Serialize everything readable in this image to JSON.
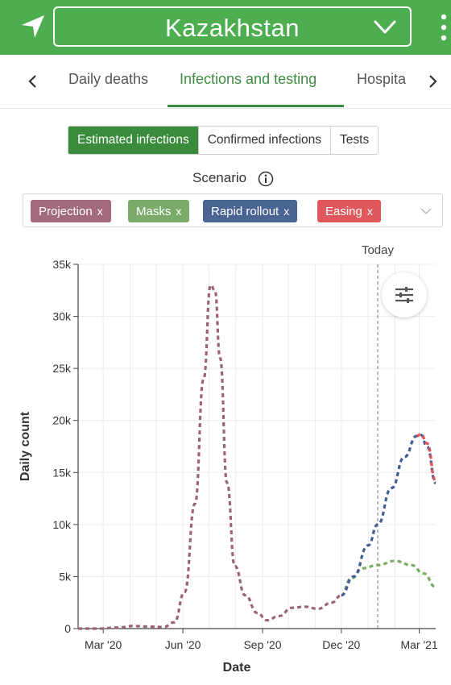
{
  "header": {
    "country": "Kazakhstan",
    "nav_icon": "location-arrow-icon",
    "dropdown_icon": "chevron-down-icon",
    "menu_icon": "kebab-menu-icon",
    "color": "#4cae4f"
  },
  "tabs": {
    "items": [
      {
        "label": "Daily deaths",
        "active": false
      },
      {
        "label": "Infections and testing",
        "active": true
      },
      {
        "label": "Hospita",
        "active": false
      }
    ],
    "active_color": "#3c8c40"
  },
  "segmented": {
    "options": [
      {
        "label": "Estimated infections",
        "active": true
      },
      {
        "label": "Confirmed infections",
        "active": false
      },
      {
        "label": "Tests",
        "active": false
      }
    ]
  },
  "scenario": {
    "label": "Scenario",
    "chips": [
      {
        "label": "Projection",
        "color": "#a36a7c"
      },
      {
        "label": "Masks",
        "color": "#7aab6a"
      },
      {
        "label": "Rapid rollout",
        "color": "#4a6494"
      },
      {
        "label": "Easing",
        "color": "#e0585c"
      }
    ],
    "remove_glyph": "x"
  },
  "chart_data": {
    "type": "line",
    "xlabel": "Date",
    "ylabel": "Daily count",
    "ylim": [
      0,
      35000
    ],
    "y_ticks": [
      0,
      5000,
      10000,
      15000,
      20000,
      25000,
      30000,
      35000
    ],
    "y_tick_labels": [
      "0",
      "5k",
      "10k",
      "15k",
      "20k",
      "25k",
      "30k",
      "35k"
    ],
    "x_range": [
      "2020-02-01",
      "2021-03-20"
    ],
    "x_ticks": [
      "2020-03-01",
      "2020-06-01",
      "2020-09-01",
      "2020-12-01",
      "2021-03-01"
    ],
    "x_tick_labels": [
      "Mar '20",
      "Jun '20",
      "Sep '20",
      "Dec '20",
      "Mar '21"
    ],
    "today": {
      "label": "Today",
      "date": "2021-01-12"
    },
    "grid": true,
    "series": [
      {
        "name": "Projection",
        "color": "#9c6279",
        "points": [
          [
            "2020-02-01",
            0
          ],
          [
            "2020-02-25",
            0
          ],
          [
            "2020-03-18",
            100
          ],
          [
            "2020-04-05",
            250
          ],
          [
            "2020-04-20",
            200
          ],
          [
            "2020-05-10",
            150
          ],
          [
            "2020-05-22",
            600
          ],
          [
            "2020-06-03",
            3500
          ],
          [
            "2020-06-15",
            12000
          ],
          [
            "2020-06-25",
            24000
          ],
          [
            "2020-07-03",
            33000
          ],
          [
            "2020-07-08",
            32500
          ],
          [
            "2020-07-14",
            26000
          ],
          [
            "2020-07-22",
            14000
          ],
          [
            "2020-07-31",
            6000
          ],
          [
            "2020-08-12",
            3200
          ],
          [
            "2020-08-26",
            1500
          ],
          [
            "2020-09-06",
            800
          ],
          [
            "2020-09-20",
            1200
          ],
          [
            "2020-10-05",
            2000
          ],
          [
            "2020-10-20",
            2100
          ],
          [
            "2020-11-04",
            1900
          ],
          [
            "2020-11-20",
            2500
          ],
          [
            "2020-12-01",
            3200
          ]
        ]
      },
      {
        "name": "Masks",
        "color": "#78ad64",
        "points": [
          [
            "2020-12-01",
            3200
          ],
          [
            "2020-12-12",
            4800
          ],
          [
            "2020-12-26",
            5800
          ],
          [
            "2021-01-12",
            6100
          ],
          [
            "2021-02-01",
            6500
          ],
          [
            "2021-02-20",
            6100
          ],
          [
            "2021-03-06",
            5300
          ],
          [
            "2021-03-20",
            4000
          ]
        ]
      },
      {
        "name": "Rapid rollout",
        "color": "#445d92",
        "points": [
          [
            "2020-12-01",
            3200
          ],
          [
            "2020-12-15",
            5000
          ],
          [
            "2021-01-01",
            8000
          ],
          [
            "2021-01-12",
            10000
          ],
          [
            "2021-01-28",
            13500
          ],
          [
            "2021-02-12",
            16500
          ],
          [
            "2021-02-26",
            18500
          ],
          [
            "2021-03-03",
            18600
          ],
          [
            "2021-03-10",
            17500
          ],
          [
            "2021-03-20",
            14000
          ]
        ]
      },
      {
        "name": "Easing",
        "color": "#dd5557",
        "points": [
          [
            "2021-02-26",
            18500
          ],
          [
            "2021-03-03",
            18700
          ],
          [
            "2021-03-10",
            17800
          ],
          [
            "2021-03-20",
            14200
          ]
        ]
      }
    ]
  }
}
